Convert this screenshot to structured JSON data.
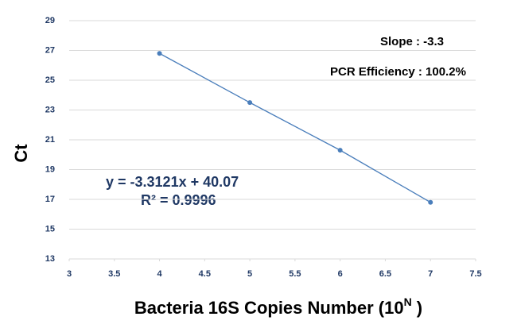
{
  "chart_data": {
    "type": "scatter",
    "x": [
      4,
      5,
      6,
      7
    ],
    "series": [
      {
        "color": "#4a7ebb",
        "values": [
          26.8,
          23.5,
          20.3,
          16.8
        ]
      }
    ],
    "xlim": [
      3,
      7.5
    ],
    "xticks": [
      3,
      3.5,
      4,
      4.5,
      5,
      5.5,
      6,
      6.5,
      7,
      7.5
    ],
    "ylim": [
      13,
      29
    ],
    "yticks": [
      13,
      15,
      17,
      19,
      21,
      23,
      25,
      27,
      29
    ],
    "grid": true,
    "y_label": "Ct",
    "x_label": {
      "text": "Bacteria 16S Copies Number (10",
      "superscript": "N",
      "end": " )"
    },
    "annotations": [
      "Slope : -3.3",
      "PCR Efficiency : 100.2%",
      "y = -3.3121x + 40.07",
      "R² = 0.9996"
    ]
  }
}
